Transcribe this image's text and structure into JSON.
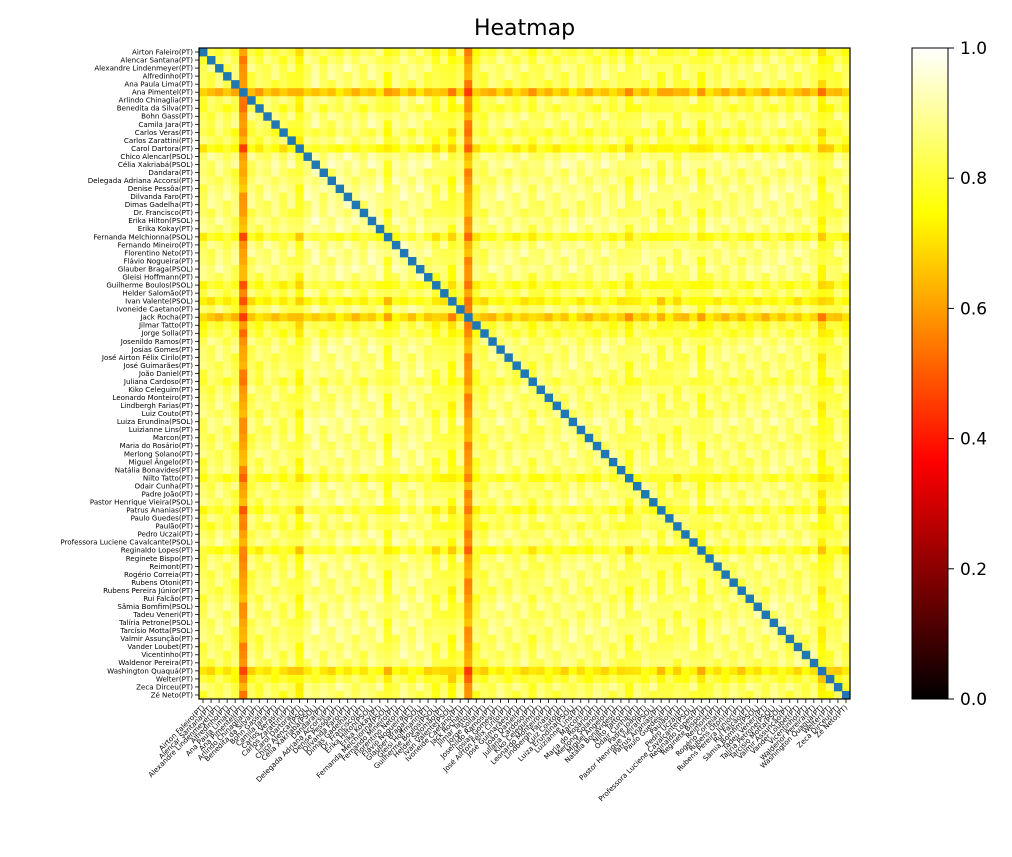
{
  "chart_data": {
    "type": "heatmap",
    "title": "Heatmap",
    "labels": [
      "Airton Faleiro(PT)",
      "Alencar Santana(PT)",
      "Alexandre Lindenmeyer(PT)",
      "Alfredinho(PT)",
      "Ana Paula Lima(PT)",
      "Ana Pimentel(PT)",
      "Arlindo Chinaglia(PT)",
      "Benedita da Silva(PT)",
      "Bohn Gass(PT)",
      "Camila Jara(PT)",
      "Carlos Veras(PT)",
      "Carlos Zarattini(PT)",
      "Carol Dartora(PT)",
      "Chico Alencar(PSOL)",
      "Célia Xakriabá(PSOL)",
      "Dandara(PT)",
      "Delegada Adriana Accorsi(PT)",
      "Denise Pessôa(PT)",
      "Dilvanda Faro(PT)",
      "Dimas Gadelha(PT)",
      "Dr. Francisco(PT)",
      "Erika Hilton(PSOL)",
      "Erika Kokay(PT)",
      "Fernanda Melchionna(PSOL)",
      "Fernando Mineiro(PT)",
      "Florentino Neto(PT)",
      "Flávio Nogueira(PT)",
      "Glauber Braga(PSOL)",
      "Gleisi Hoffmann(PT)",
      "Guilherme Boulos(PSOL)",
      "Helder Salomão(PT)",
      "Ivan Valente(PSOL)",
      "Ivoneide Caetano(PT)",
      "Jack Rocha(PT)",
      "Jilmar Tatto(PT)",
      "Jorge Solla(PT)",
      "Josenildo Ramos(PT)",
      "Josias Gomes(PT)",
      "José Airton Félix Cirilo(PT)",
      "José Guimarães(PT)",
      "João Daniel(PT)",
      "Juliana Cardoso(PT)",
      "Kiko Celeguim(PT)",
      "Leonardo Monteiro(PT)",
      "Lindbergh Farias(PT)",
      "Luiz Couto(PT)",
      "Luiza Erundina(PSOL)",
      "Luizianne Lins(PT)",
      "Marcon(PT)",
      "Maria do Rosário(PT)",
      "Merlong Solano(PT)",
      "Miguel Ângelo(PT)",
      "Natália Bonavides(PT)",
      "Nilto Tatto(PT)",
      "Odair Cunha(PT)",
      "Padre João(PT)",
      "Pastor Henrique Vieira(PSOL)",
      "Patrus Ananias(PT)",
      "Paulo Guedes(PT)",
      "Paulão(PT)",
      "Pedro Uczai(PT)",
      "Professora Luciene Cavalcante(PSOL)",
      "Reginaldo Lopes(PT)",
      "Reginete Bispo(PT)",
      "Reimont(PT)",
      "Rogério Correia(PT)",
      "Rubens Otoni(PT)",
      "Rubens Pereira Júnior(PT)",
      "Rui Falcão(PT)",
      "Sâmia Bomfim(PSOL)",
      "Tadeu Veneri(PT)",
      "Talíria Petrone(PSOL)",
      "Tarcísio Motta(PSOL)",
      "Valmir Assunção(PT)",
      "Vander Loubet(PT)",
      "Vicentinho(PT)",
      "Waldenor Pereira(PT)",
      "Washington Quaquá(PT)",
      "Welter(PT)",
      "Zeca Dirceu(PT)",
      "Zé Neto(PT)"
    ],
    "colorbar": {
      "min": 0.0,
      "max": 1.0,
      "ticks": [
        "0.0",
        "0.2",
        "0.4",
        "0.6",
        "0.8",
        "1.0"
      ]
    },
    "colormap": "hot",
    "diagonal_color": "#1f77b4",
    "row_mean": [
      0.84,
      0.86,
      0.88,
      0.87,
      0.86,
      0.68,
      0.87,
      0.84,
      0.88,
      0.88,
      0.84,
      0.87,
      0.78,
      0.9,
      0.91,
      0.88,
      0.89,
      0.9,
      0.9,
      0.89,
      0.88,
      0.9,
      0.9,
      0.8,
      0.89,
      0.9,
      0.89,
      0.9,
      0.88,
      0.81,
      0.87,
      0.77,
      0.88,
      0.7,
      0.83,
      0.84,
      0.88,
      0.89,
      0.88,
      0.88,
      0.88,
      0.85,
      0.88,
      0.88,
      0.88,
      0.88,
      0.9,
      0.88,
      0.88,
      0.88,
      0.89,
      0.88,
      0.88,
      0.81,
      0.88,
      0.88,
      0.89,
      0.82,
      0.88,
      0.85,
      0.88,
      0.89,
      0.8,
      0.88,
      0.88,
      0.88,
      0.88,
      0.87,
      0.88,
      0.89,
      0.88,
      0.89,
      0.89,
      0.88,
      0.88,
      0.88,
      0.88,
      0.74,
      0.82,
      0.87,
      0.86
    ],
    "col_mean": [
      0.86,
      0.87,
      0.88,
      0.87,
      0.86,
      0.62,
      0.87,
      0.86,
      0.88,
      0.88,
      0.86,
      0.87,
      0.8,
      0.9,
      0.91,
      0.88,
      0.89,
      0.9,
      0.9,
      0.89,
      0.88,
      0.9,
      0.9,
      0.82,
      0.89,
      0.9,
      0.89,
      0.9,
      0.88,
      0.84,
      0.87,
      0.8,
      0.88,
      0.62,
      0.85,
      0.86,
      0.88,
      0.89,
      0.88,
      0.88,
      0.88,
      0.85,
      0.88,
      0.88,
      0.88,
      0.88,
      0.9,
      0.88,
      0.88,
      0.88,
      0.89,
      0.88,
      0.88,
      0.83,
      0.88,
      0.88,
      0.89,
      0.84,
      0.88,
      0.85,
      0.88,
      0.89,
      0.82,
      0.88,
      0.88,
      0.88,
      0.88,
      0.87,
      0.88,
      0.89,
      0.88,
      0.89,
      0.89,
      0.88,
      0.88,
      0.88,
      0.88,
      0.78,
      0.84,
      0.87,
      0.86
    ],
    "grid": false
  }
}
